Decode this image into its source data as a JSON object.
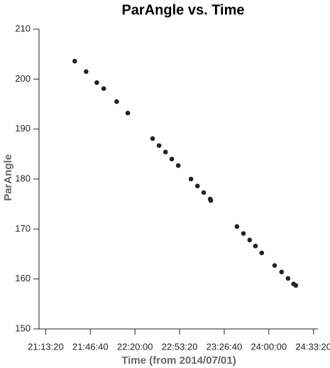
{
  "chart_data": {
    "type": "scatter",
    "title": "ParAngle vs. Time",
    "x_label": "Time (from 2014/07/01)",
    "y_label": "ParAngle",
    "series": [
      {
        "name": "ParAngle",
        "color": "#222222",
        "x": [
          77700,
          78210,
          78690,
          79000,
          79580,
          80080,
          81190,
          81480,
          81770,
          82050,
          82340,
          82910,
          83200,
          83480,
          83770,
          83800,
          84970,
          85260,
          85540,
          85800,
          86080,
          86660,
          86970,
          87260,
          87510,
          87610
        ],
        "values": [
          203.6,
          201.5,
          199.3,
          198.1,
          195.5,
          193.2,
          188.1,
          186.7,
          185.4,
          184.0,
          182.7,
          180.0,
          178.6,
          177.3,
          176.0,
          175.7,
          170.5,
          169.1,
          167.8,
          166.6,
          165.2,
          162.7,
          161.4,
          160.1,
          159.0,
          158.7
        ]
      }
    ],
    "xlim": [
      76100,
      88600
    ],
    "xticks": [
      {
        "value": 76400,
        "label": "21:13:20"
      },
      {
        "value": 78400,
        "label": "21:46:40"
      },
      {
        "value": 80400,
        "label": "22:20:00"
      },
      {
        "value": 82400,
        "label": "22:53:20"
      },
      {
        "value": 84400,
        "label": "23:26:40"
      },
      {
        "value": 86400,
        "label": "24:00:00"
      },
      {
        "value": 88400,
        "label": "24:33:20"
      }
    ],
    "ylim": [
      150,
      210
    ],
    "yticks": [
      150,
      160,
      170,
      180,
      190,
      200,
      210
    ],
    "grid": false
  }
}
